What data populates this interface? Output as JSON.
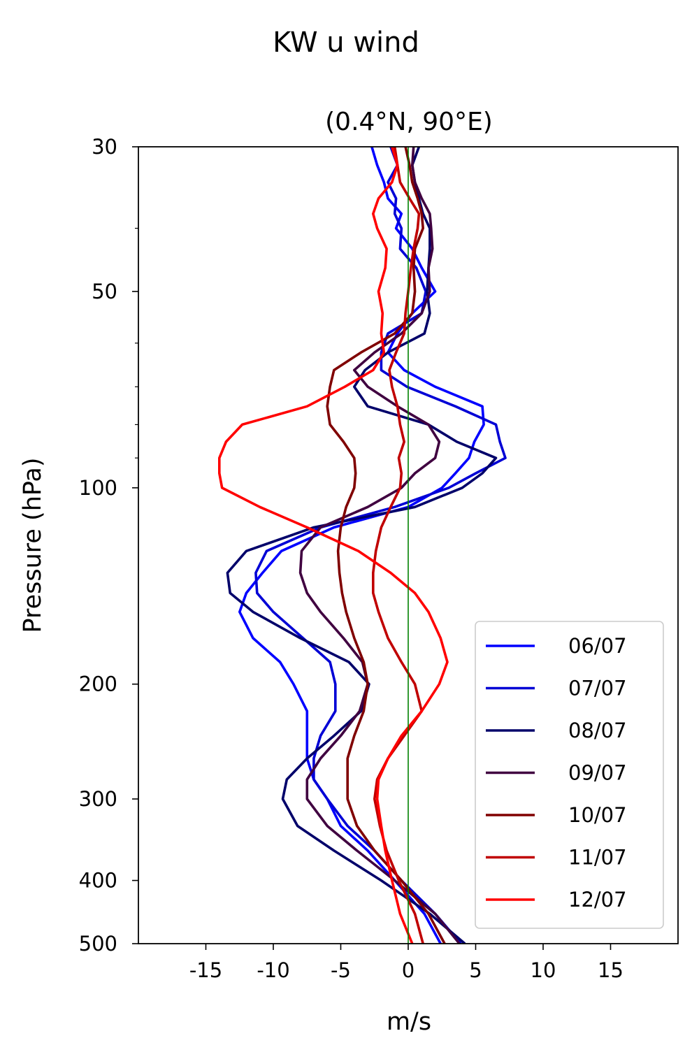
{
  "chart_data": {
    "type": "line",
    "title": "KW u wind",
    "subtitle": "(0.4°N, 90°E)",
    "xlabel": "m/s",
    "ylabel": "Pressure (hPa)",
    "xlim": [
      -20,
      20
    ],
    "ylim": [
      500,
      30
    ],
    "y_scale": "log",
    "x_ticks": [
      -15,
      -10,
      -5,
      0,
      5,
      10,
      15
    ],
    "x_tick_labels": [
      "-15",
      "-10",
      "-5",
      "0",
      "5",
      "10",
      "15"
    ],
    "y_ticks": [
      30,
      50,
      100,
      200,
      300,
      400,
      500
    ],
    "y_tick_labels": [
      "30",
      "50",
      "100",
      "200",
      "300",
      "400",
      "500"
    ],
    "grid": false,
    "legend_position": "lower-right",
    "reference_line": {
      "x": 0,
      "color": "#008000"
    },
    "pressure_levels": [
      30,
      32,
      34,
      36,
      38,
      40,
      43,
      46,
      50,
      54,
      58,
      62,
      66,
      70,
      75,
      80,
      85,
      90,
      95,
      100,
      107,
      115,
      125,
      135,
      145,
      155,
      170,
      185,
      200,
      220,
      240,
      260,
      280,
      300,
      330,
      360,
      400,
      450,
      500
    ],
    "series": [
      {
        "name": "06/07",
        "color": "#0000ff",
        "values": [
          -2.7,
          -2.3,
          -1.8,
          -1.5,
          -0.5,
          -0.9,
          0.3,
          1,
          2,
          0.3,
          -0.8,
          -1.5,
          -0.3,
          2,
          5.5,
          5.6,
          4.9,
          4.5,
          3.5,
          2.5,
          0,
          -5.5,
          -9.4,
          -10.8,
          -12,
          -12.5,
          -11.5,
          -9.5,
          -8.5,
          -7.5,
          -7.5,
          -7.5,
          -7,
          -6,
          -5,
          -3,
          -1,
          1.2,
          2.4
        ]
      },
      {
        "name": "07/07",
        "color": "#0000d5",
        "values": [
          -1.3,
          -0.8,
          -1.5,
          -0.9,
          -1,
          -0.5,
          -0.6,
          0.6,
          1.3,
          1,
          -1.5,
          -2,
          -2,
          -0.1,
          3.5,
          6.5,
          6.8,
          7.2,
          5,
          3,
          -1,
          -6.5,
          -10.5,
          -11.3,
          -11.2,
          -10,
          -7.8,
          -5.8,
          -5.4,
          -5.4,
          -6.5,
          -7,
          -7,
          -6,
          -4.5,
          -2.5,
          -0.5,
          2.0,
          3.9
        ]
      },
      {
        "name": "08/07",
        "color": "#00006a",
        "values": [
          0.8,
          0.3,
          0.5,
          0.8,
          1.1,
          1.6,
          1.6,
          1.5,
          1.4,
          1.6,
          1.2,
          -1.5,
          -3.2,
          -4,
          -3,
          1.5,
          3.6,
          6.5,
          5.5,
          4,
          0.5,
          -7,
          -12,
          -13.4,
          -13.2,
          -11.5,
          -8,
          -4.4,
          -2.9,
          -3.5,
          -5.5,
          -7.5,
          -9,
          -9.3,
          -8.2,
          -5.5,
          -2,
          1.6,
          4.2
        ]
      },
      {
        "name": "09/07",
        "color": "#400040",
        "values": [
          0.4,
          0.3,
          0.5,
          1.0,
          1.6,
          1.7,
          1.8,
          1.5,
          1.6,
          1.0,
          -0.5,
          -2.5,
          -4.0,
          -3.0,
          -0.8,
          1.5,
          2.3,
          2.0,
          0.5,
          -0.5,
          -3.0,
          -6.5,
          -7.9,
          -8.0,
          -7.5,
          -6.5,
          -4.8,
          -3.4,
          -3.0,
          -3.6,
          -5.0,
          -6.5,
          -7.5,
          -7.5,
          -6.0,
          -3.8,
          -1.0,
          2.0,
          3.8
        ]
      },
      {
        "name": "10/07",
        "color": "#800000",
        "values": [
          -0.2,
          0.1,
          0.3,
          0.7,
          1.0,
          1.1,
          0.5,
          0.4,
          0.5,
          0.3,
          -1.0,
          -3.5,
          -5.5,
          -5.8,
          -6.0,
          -5.8,
          -4.8,
          -4.0,
          -3.9,
          -4.0,
          -4.6,
          -5.0,
          -5.2,
          -5.1,
          -4.9,
          -4.6,
          -4.0,
          -3.3,
          -3.0,
          -3.3,
          -4.0,
          -4.5,
          -4.5,
          -4.5,
          -3.8,
          -2.5,
          -0.5,
          1.5,
          2.7
        ]
      },
      {
        "name": "11/07",
        "color": "#c00000",
        "values": [
          -1.0,
          -0.8,
          -0.6,
          0.1,
          0.8,
          0.7,
          0.4,
          0.2,
          0.0,
          -0.2,
          -0.3,
          -0.9,
          -1.4,
          -1.2,
          -0.8,
          -0.6,
          -0.3,
          -0.7,
          -0.5,
          -0.6,
          -1.3,
          -2.0,
          -2.4,
          -2.6,
          -2.6,
          -2.2,
          -1.5,
          -0.5,
          0.5,
          1.0,
          -0.3,
          -1.5,
          -2.3,
          -2.5,
          -2.1,
          -1.6,
          -0.7,
          0.5,
          1.1
        ]
      },
      {
        "name": "12/07",
        "color": "#ff0000",
        "values": [
          -1.2,
          -0.8,
          -1.2,
          -2.2,
          -2.6,
          -2.3,
          -1.6,
          -1.7,
          -2.2,
          -1.9,
          -2.0,
          -1.8,
          -2.6,
          -4.7,
          -7.5,
          -12.3,
          -13.5,
          -14.0,
          -14.0,
          -13.8,
          -11.0,
          -7.5,
          -3.7,
          -1.3,
          0.5,
          1.5,
          2.4,
          2.9,
          2.3,
          1.0,
          -0.5,
          -1.5,
          -2.2,
          -2.3,
          -2.0,
          -1.7,
          -1.2,
          -0.6,
          0.3
        ]
      }
    ]
  }
}
